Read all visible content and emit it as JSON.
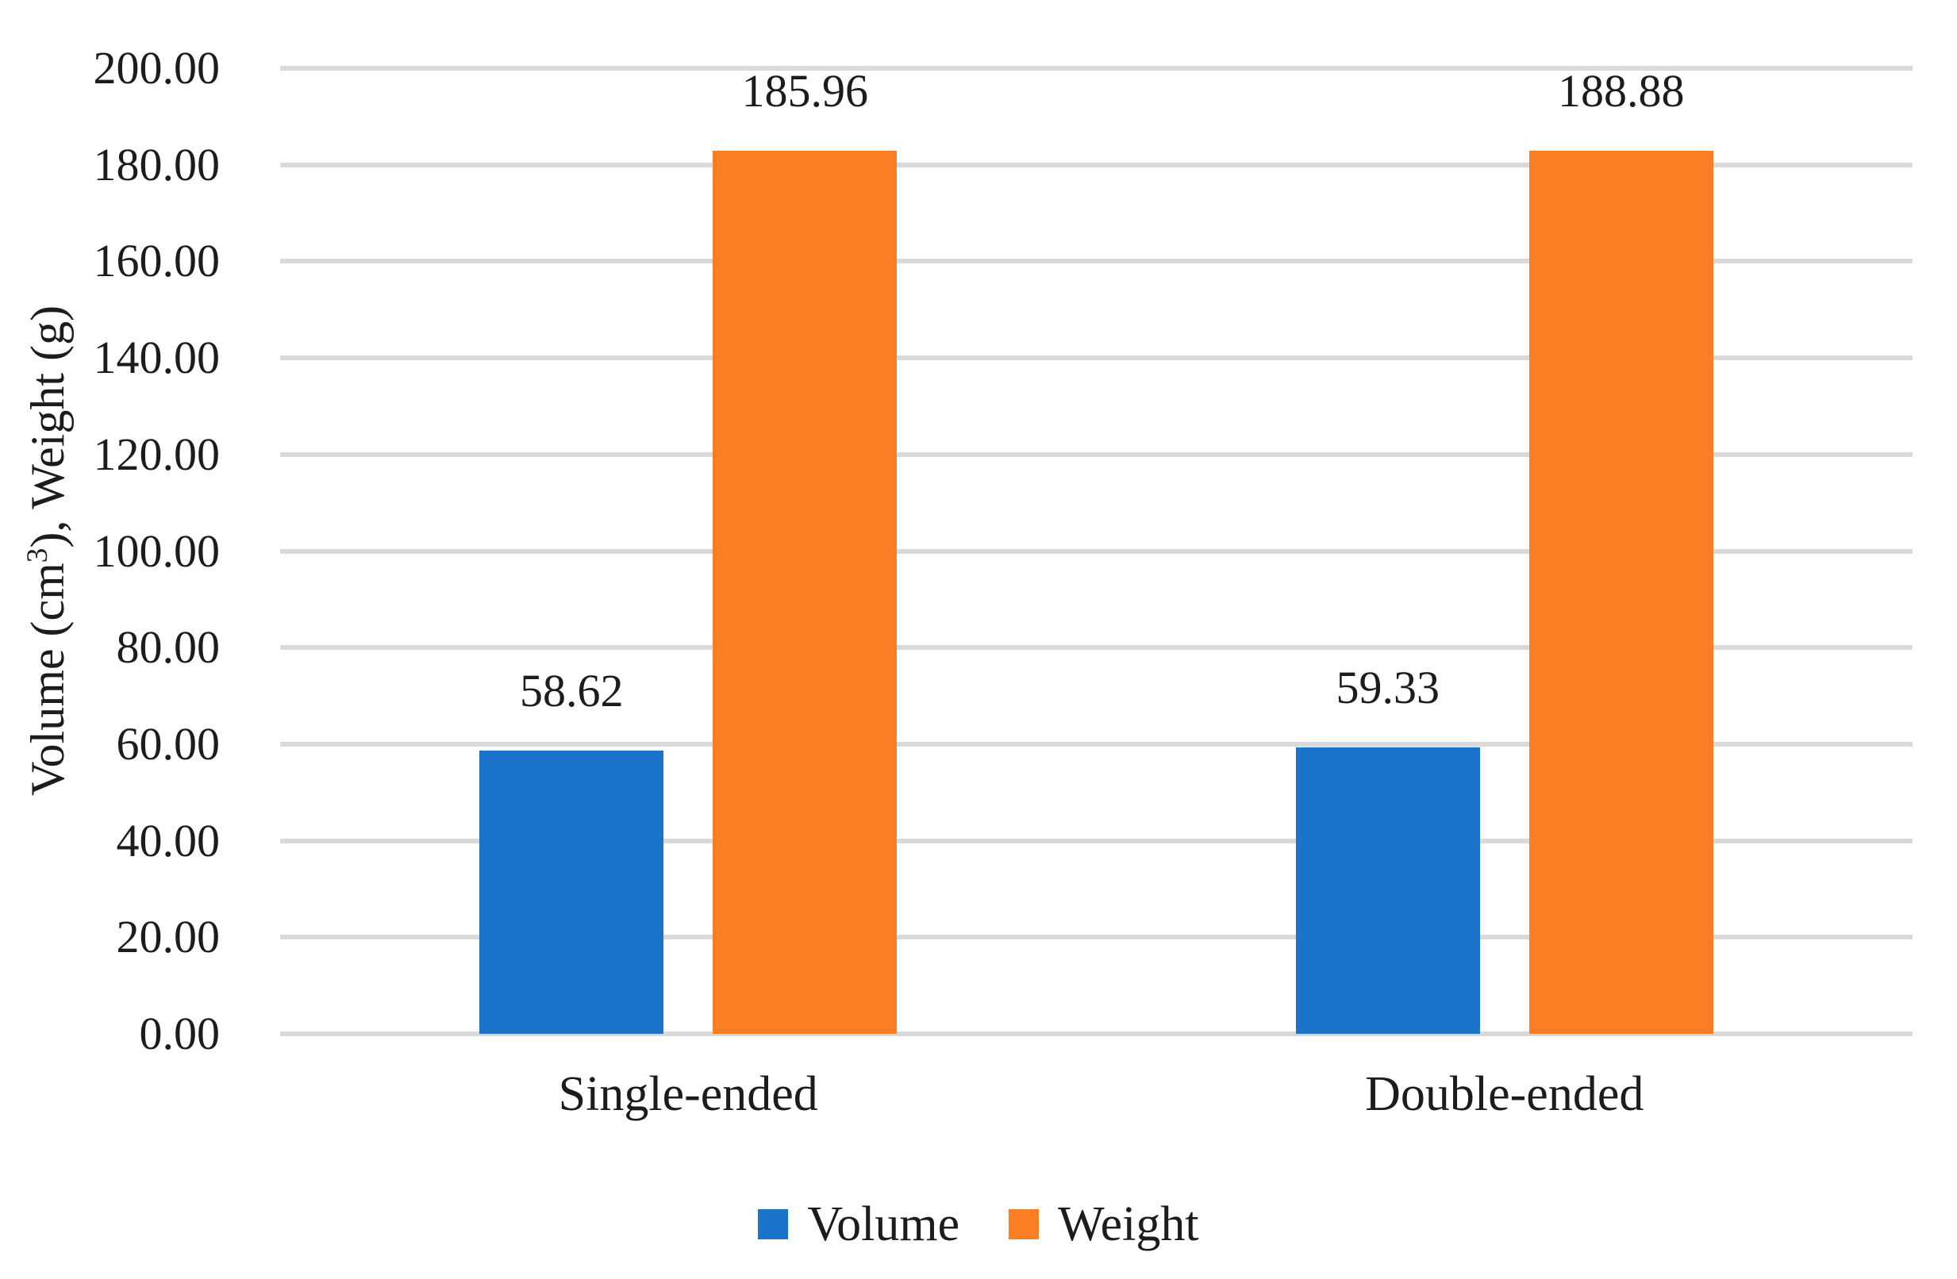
{
  "chart_data": {
    "type": "bar",
    "title": "",
    "categories": [
      "Single-ended",
      "Double-ended"
    ],
    "series": [
      {
        "name": "Volume",
        "color": "#1B74C9",
        "values": [
          58.62,
          59.33
        ],
        "labels": [
          "58.62",
          "59.33"
        ]
      },
      {
        "name": "Weight",
        "color": "#FC7E22",
        "values": [
          185.96,
          188.88
        ],
        "labels": [
          "185.96",
          "188.88"
        ]
      }
    ],
    "xlabel": "",
    "ylabel": {
      "prefix": "Volume (cm",
      "superscript": "3",
      "suffix": "), Weight (g)"
    },
    "ylim": [
      0,
      200
    ],
    "ytick_step": 20,
    "yticks": [
      "200.00",
      "180.00",
      "160.00",
      "140.00",
      "120.00",
      "100.00",
      "80.00",
      "60.00",
      "40.00",
      "20.00",
      "0.00"
    ],
    "grid": "horizontal",
    "gridline_color": "#D9D9D9",
    "background_color": "#FFFFFF",
    "legend": {
      "position": "bottom",
      "entries": [
        {
          "label": "Volume",
          "color": "#1B74C9"
        },
        {
          "label": "Weight",
          "color": "#FC7E22"
        }
      ]
    }
  }
}
